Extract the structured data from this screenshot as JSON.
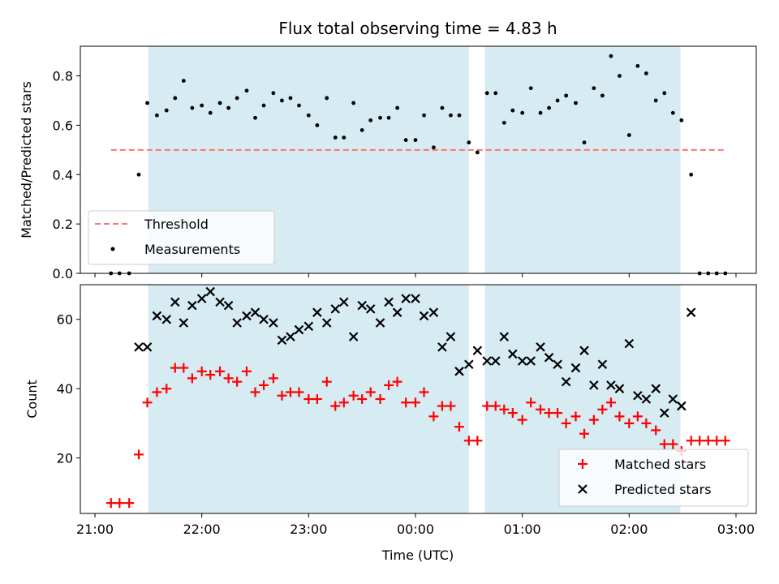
{
  "chart_data": [
    {
      "type": "scatter",
      "title": "Flux total observing time = 4.83 h",
      "ylabel": "Matched/Predicted stars",
      "ylim": [
        0,
        0.92
      ],
      "xlim": [
        -0.137,
        6.19
      ],
      "yticks": [
        {
          "value": 0.0,
          "label": "0.0"
        },
        {
          "value": 0.2,
          "label": "0.2"
        },
        {
          "value": 0.4,
          "label": "0.4"
        },
        {
          "value": 0.6,
          "label": "0.6"
        },
        {
          "value": 0.8,
          "label": "0.8"
        }
      ],
      "shaded_regions": [
        [
          0.5,
          3.5
        ],
        [
          3.65,
          5.48
        ]
      ],
      "legend_position": "lower left",
      "threshold": {
        "name": "Threshold",
        "value": 0.5,
        "x_range": [
          0.15,
          5.9
        ],
        "color": "#ff7474"
      },
      "series": [
        {
          "name": "Measurements",
          "color": "#000000",
          "x": [
            0.15,
            0.23,
            0.32,
            0.41,
            0.49,
            0.58,
            0.67,
            0.75,
            0.83,
            0.91,
            1.0,
            1.08,
            1.17,
            1.25,
            1.33,
            1.42,
            1.5,
            1.58,
            1.67,
            1.75,
            1.83,
            1.91,
            2.0,
            2.08,
            2.17,
            2.25,
            2.33,
            2.42,
            2.5,
            2.58,
            2.67,
            2.75,
            2.83,
            2.91,
            3.0,
            3.08,
            3.17,
            3.25,
            3.33,
            3.41,
            3.5,
            3.58,
            3.67,
            3.75,
            3.83,
            3.91,
            4.0,
            4.08,
            4.17,
            4.25,
            4.33,
            4.41,
            4.5,
            4.58,
            4.67,
            4.75,
            4.83,
            4.91,
            5.0,
            5.08,
            5.16,
            5.25,
            5.33,
            5.41,
            5.49,
            5.58,
            5.66,
            5.74,
            5.82,
            5.9
          ],
          "y": [
            0.0,
            0.0,
            0.0,
            0.4,
            0.69,
            0.64,
            0.66,
            0.71,
            0.78,
            0.67,
            0.68,
            0.65,
            0.69,
            0.67,
            0.71,
            0.74,
            0.63,
            0.68,
            0.73,
            0.7,
            0.71,
            0.68,
            0.64,
            0.6,
            0.71,
            0.55,
            0.55,
            0.69,
            0.58,
            0.62,
            0.63,
            0.63,
            0.67,
            0.54,
            0.54,
            0.64,
            0.51,
            0.67,
            0.64,
            0.64,
            0.53,
            0.49,
            0.73,
            0.73,
            0.61,
            0.66,
            0.65,
            0.75,
            0.65,
            0.67,
            0.7,
            0.72,
            0.69,
            0.53,
            0.75,
            0.72,
            0.88,
            0.8,
            0.56,
            0.84,
            0.81,
            0.7,
            0.73,
            0.65,
            0.62,
            0.4,
            0.0,
            0.0,
            0.0,
            0.0
          ]
        }
      ]
    },
    {
      "type": "scatter",
      "xlabel": "Time (UTC)",
      "ylabel": "Count",
      "ylim": [
        4,
        70
      ],
      "xlim": [
        -0.137,
        6.19
      ],
      "xticks": [
        {
          "value": 0,
          "label": "21:00"
        },
        {
          "value": 1,
          "label": "22:00"
        },
        {
          "value": 2,
          "label": "23:00"
        },
        {
          "value": 3,
          "label": "00:00"
        },
        {
          "value": 4,
          "label": "01:00"
        },
        {
          "value": 5,
          "label": "02:00"
        },
        {
          "value": 6,
          "label": "03:00"
        }
      ],
      "yticks": [
        {
          "value": 20,
          "label": "20"
        },
        {
          "value": 40,
          "label": "40"
        },
        {
          "value": 60,
          "label": "60"
        }
      ],
      "shaded_regions": [
        [
          0.5,
          3.5
        ],
        [
          3.65,
          5.48
        ]
      ],
      "legend_position": "lower right",
      "series": [
        {
          "name": "Matched stars",
          "marker": "plus",
          "color": "#ff0000",
          "x": [
            0.15,
            0.23,
            0.32,
            0.41,
            0.49,
            0.58,
            0.67,
            0.75,
            0.83,
            0.91,
            1.0,
            1.08,
            1.17,
            1.25,
            1.33,
            1.42,
            1.5,
            1.58,
            1.67,
            1.75,
            1.83,
            1.91,
            2.0,
            2.08,
            2.17,
            2.25,
            2.33,
            2.42,
            2.5,
            2.58,
            2.67,
            2.75,
            2.83,
            2.91,
            3.0,
            3.08,
            3.17,
            3.25,
            3.33,
            3.41,
            3.5,
            3.58,
            3.67,
            3.75,
            3.83,
            3.91,
            4.0,
            4.08,
            4.17,
            4.25,
            4.33,
            4.41,
            4.5,
            4.58,
            4.67,
            4.75,
            4.83,
            4.91,
            5.0,
            5.08,
            5.16,
            5.25,
            5.33,
            5.41,
            5.49,
            5.58,
            5.66,
            5.74,
            5.82,
            5.9
          ],
          "y": [
            7,
            7,
            7,
            21,
            36,
            39,
            40,
            46,
            46,
            43,
            45,
            44,
            45,
            43,
            42,
            45,
            39,
            41,
            43,
            38,
            39,
            39,
            37,
            37,
            42,
            35,
            36,
            38,
            37,
            39,
            37,
            41,
            42,
            36,
            36,
            39,
            32,
            35,
            35,
            29,
            25,
            25,
            35,
            35,
            34,
            33,
            31,
            36,
            34,
            33,
            33,
            30,
            32,
            27,
            31,
            34,
            36,
            32,
            30,
            32,
            30,
            28,
            24,
            24,
            22,
            25,
            25,
            25,
            25,
            25
          ]
        },
        {
          "name": "Predicted stars",
          "marker": "x",
          "color": "#000000",
          "x": [
            0.41,
            0.49,
            0.58,
            0.67,
            0.75,
            0.83,
            0.91,
            1.0,
            1.08,
            1.17,
            1.25,
            1.33,
            1.42,
            1.5,
            1.58,
            1.67,
            1.75,
            1.83,
            1.91,
            2.0,
            2.08,
            2.17,
            2.25,
            2.33,
            2.42,
            2.5,
            2.58,
            2.67,
            2.75,
            2.83,
            2.91,
            3.0,
            3.08,
            3.17,
            3.25,
            3.33,
            3.41,
            3.5,
            3.58,
            3.67,
            3.75,
            3.83,
            3.91,
            4.0,
            4.08,
            4.17,
            4.25,
            4.33,
            4.41,
            4.5,
            4.58,
            4.67,
            4.75,
            4.83,
            4.91,
            5.0,
            5.08,
            5.16,
            5.25,
            5.33,
            5.41,
            5.49,
            5.58
          ],
          "y": [
            52,
            52,
            61,
            60,
            65,
            59,
            64,
            66,
            68,
            65,
            64,
            59,
            61,
            62,
            60,
            59,
            54,
            55,
            57,
            58,
            62,
            59,
            63,
            65,
            55,
            64,
            63,
            59,
            65,
            62,
            66,
            66,
            61,
            62,
            52,
            55,
            45,
            47,
            51,
            48,
            48,
            55,
            50,
            48,
            48,
            52,
            49,
            47,
            42,
            46,
            51,
            41,
            47,
            41,
            40,
            53,
            38,
            37,
            40,
            33,
            37,
            35,
            62
          ]
        }
      ]
    }
  ]
}
